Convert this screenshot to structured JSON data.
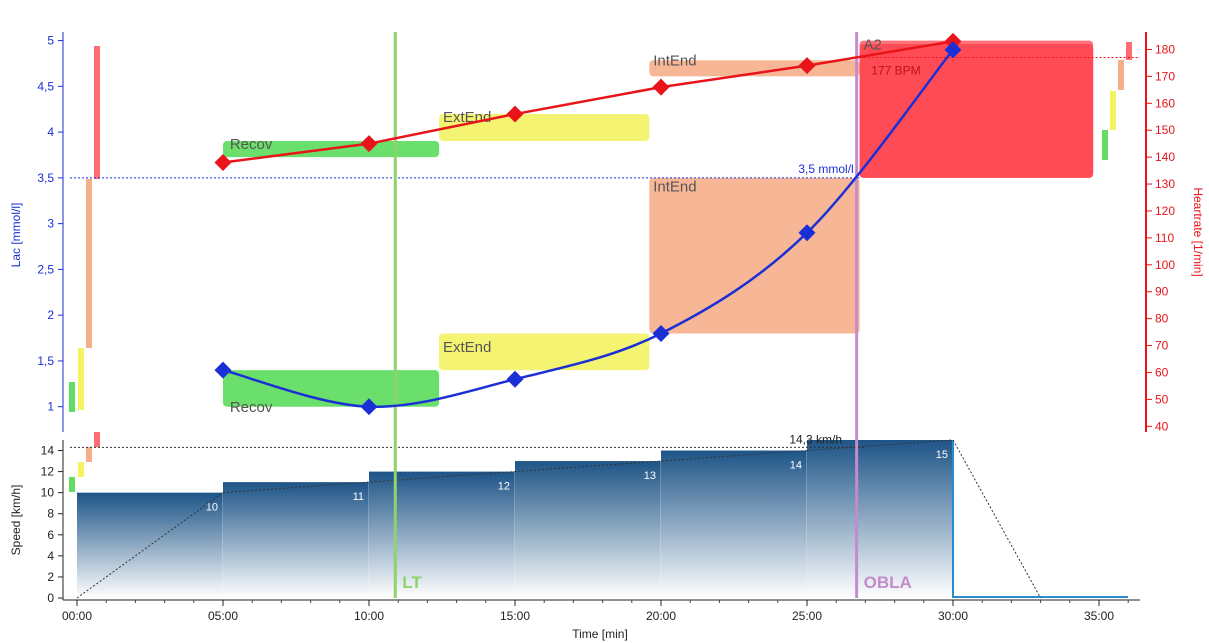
{
  "colors": {
    "lactate": "#1b2fd6",
    "heartrate": "#e8141a",
    "recov": "#32d232",
    "extend": "#f0f03c",
    "intend": "#f49b6e",
    "max": "#ff3c46",
    "lt": "#8fd36a",
    "obla": "#c48ccc",
    "speed_top": "#1d5487",
    "speed_bottom": "#ffffff",
    "grid": "#d0d0d0"
  },
  "chart_data": {
    "type": "line",
    "xlabel": "Time [min]",
    "x_tick_labels": [
      "00:00",
      "05:00",
      "10:00",
      "15:00",
      "20:00",
      "25:00",
      "30:00",
      "35:00"
    ],
    "x_ticks_min": [
      0,
      5,
      10,
      15,
      20,
      25,
      30,
      35
    ],
    "xlim": [
      0,
      36
    ],
    "lactate": {
      "ylabel": "Lac [mmol/l]",
      "ylim": [
        0.8,
        5.05
      ],
      "ticks": [
        1,
        1.5,
        2,
        2.5,
        3,
        3.5,
        4,
        4.5,
        5
      ],
      "tick_labels": [
        "1",
        "1,5",
        "2",
        "2,5",
        "3",
        "3,5",
        "4",
        "4,5",
        "5"
      ],
      "points": [
        {
          "x": 5,
          "y": 1.4
        },
        {
          "x": 10,
          "y": 1.0
        },
        {
          "x": 15,
          "y": 1.3
        },
        {
          "x": 20,
          "y": 1.8
        },
        {
          "x": 25,
          "y": 2.9
        },
        {
          "x": 30,
          "y": 4.9
        }
      ],
      "threshold_value": 3.5,
      "threshold_label": "3,5 mmol/l"
    },
    "heartrate": {
      "ylabel": "Heartrate [1/min]",
      "ylim": [
        39,
        185
      ],
      "ticks": [
        40,
        50,
        60,
        70,
        80,
        90,
        100,
        110,
        120,
        130,
        140,
        150,
        160,
        170,
        180
      ],
      "points": [
        {
          "x": 5,
          "y": 138
        },
        {
          "x": 10,
          "y": 145
        },
        {
          "x": 15,
          "y": 156
        },
        {
          "x": 20,
          "y": 166
        },
        {
          "x": 25,
          "y": 174
        },
        {
          "x": 30,
          "y": 183
        }
      ],
      "threshold_value": 177,
      "threshold_label": "177 BPM"
    },
    "speed": {
      "ylabel": "Speed [km/h]",
      "ylim": [
        0,
        15
      ],
      "ticks": [
        0,
        2,
        4,
        6,
        8,
        10,
        12,
        14
      ],
      "steps": [
        {
          "x0": 0,
          "x1": 5,
          "speed": 10,
          "label": "10"
        },
        {
          "x0": 5,
          "x1": 10,
          "speed": 11,
          "label": "11"
        },
        {
          "x0": 10,
          "x1": 15,
          "speed": 12,
          "label": "12"
        },
        {
          "x0": 15,
          "x1": 20,
          "speed": 13,
          "label": "13"
        },
        {
          "x0": 20,
          "x1": 25,
          "speed": 14,
          "label": "14"
        },
        {
          "x0": 25,
          "x1": 30,
          "speed": 15,
          "label": "15"
        }
      ],
      "threshold_value": 14.3,
      "threshold_label": "14,3 km/h",
      "ramp": [
        {
          "x": 0,
          "y": 0
        },
        {
          "x": 5,
          "y": 10
        },
        {
          "x": 30,
          "y": 15
        },
        {
          "x": 33,
          "y": 0
        }
      ]
    },
    "markers": [
      {
        "label": "LT",
        "x": 10.9
      },
      {
        "label": "OBLA",
        "x": 26.7
      }
    ],
    "zones": [
      {
        "name": "Recov",
        "color": "recov",
        "lac": [
          1.0,
          1.4
        ],
        "hr": [
          140,
          146
        ],
        "x": [
          5,
          12.4
        ]
      },
      {
        "name": "ExtEnd",
        "color": "extend",
        "lac": [
          1.4,
          1.8
        ],
        "hr": [
          146,
          156
        ],
        "x": [
          12.4,
          19.6
        ]
      },
      {
        "name": "IntEnd",
        "color": "intend",
        "lac": [
          1.8,
          3.5
        ],
        "hr": [
          170,
          176
        ],
        "x": [
          19.6,
          26.8
        ]
      },
      {
        "name": "A2",
        "color": "max",
        "lac": [
          3.5,
          5.0
        ],
        "hr": [
          130,
          182
        ],
        "x": [
          26.8,
          34.8
        ]
      }
    ],
    "zone_labels": [
      {
        "text": "Recov",
        "axis": "hr",
        "x": 5.2,
        "y": 143
      },
      {
        "text": "Recov",
        "axis": "lac",
        "x": 5.2,
        "y": 0.94
      },
      {
        "text": "ExtEnd",
        "axis": "hr",
        "x": 12.5,
        "y": 153
      },
      {
        "text": "ExtEnd",
        "axis": "lac",
        "x": 12.5,
        "y": 1.6
      },
      {
        "text": "IntEnd",
        "axis": "hr",
        "x": 19.7,
        "y": 174
      },
      {
        "text": "IntEnd",
        "axis": "lac",
        "x": 19.7,
        "y": 3.35
      },
      {
        "text": "A2",
        "axis": "hr",
        "x": 26.9,
        "y": 180
      }
    ]
  }
}
